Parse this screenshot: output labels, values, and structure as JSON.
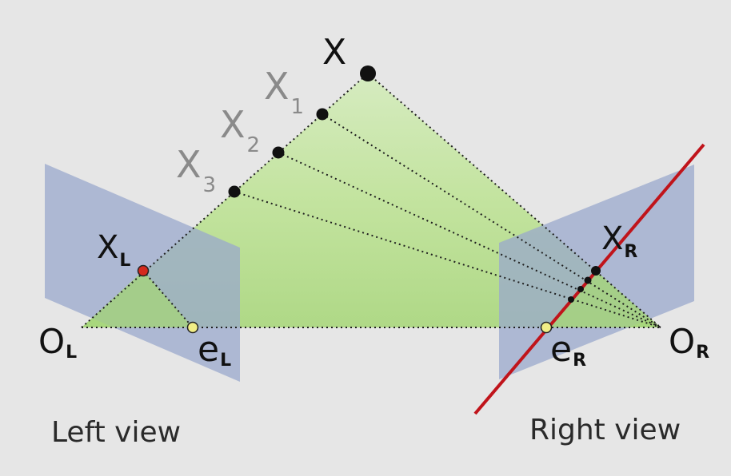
{
  "diagram": {
    "points": {
      "X": {
        "main": "X",
        "sub": ""
      },
      "X1": {
        "main": "X",
        "sub": "1"
      },
      "X2": {
        "main": "X",
        "sub": "2"
      },
      "X3": {
        "main": "X",
        "sub": "3"
      },
      "xL": {
        "main": "X",
        "sub": "L"
      },
      "xR": {
        "main": "X",
        "sub": "R"
      },
      "OL": {
        "main": "O",
        "sub": "L"
      },
      "OR": {
        "main": "O",
        "sub": "R"
      },
      "eL": {
        "main": "e",
        "sub": "L"
      },
      "eR": {
        "main": "e",
        "sub": "R"
      }
    },
    "captions": {
      "left": "Left view",
      "right": "Right view"
    },
    "colors": {
      "background": "#e6e6e6",
      "image_plane": "#9aa8cc",
      "epipolar_plane": "#b5dd8a",
      "epipolar_line": "#c0141b",
      "point": "#111111",
      "projection_point_left": "#d42a1e",
      "epipole": "#f2ee86"
    }
  }
}
